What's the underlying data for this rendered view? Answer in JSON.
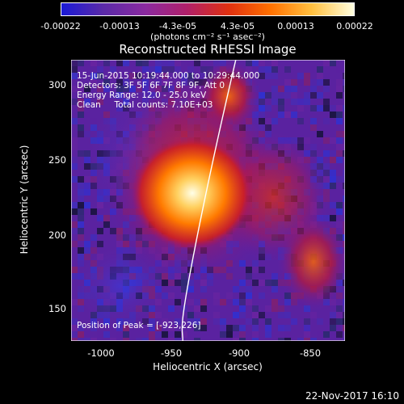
{
  "colorbar": {
    "ticks": [
      "-0.00022",
      "-0.00013",
      "-4.3e-05",
      "4.3e-05",
      "0.00013",
      "0.00022"
    ],
    "units": "(photons cm⁻² s⁻¹ asec⁻²)",
    "colors": [
      "#1a1ad6",
      "#5a2aa8",
      "#8a2aa0",
      "#b0206a",
      "#e03010",
      "#ff7000",
      "#ffc040",
      "#ffffe0"
    ]
  },
  "title": "Reconstructed RHESSI Image",
  "info": {
    "line1": "15-Jun-2015 10:19:44.000 to 10:29:44.000",
    "line2": "Detectors: 3F 5F 6F 7F 8F 9F, Att 0",
    "line3": "Energy Range: 12.0 - 25.0 keV",
    "line4": "Clean     Total counts: 7.10E+03"
  },
  "peak_label": "Position of Peak = [-923,226]",
  "axes": {
    "xlabel": "Heliocentric X (arcsec)",
    "ylabel": "Heliocentric Y (arcsec)",
    "xticks": [
      "-1000",
      "-950",
      "-900",
      "-850"
    ],
    "yticks": [
      "300",
      "250",
      "200",
      "150"
    ]
  },
  "datestamp": "22-Nov-2017 16:10"
}
